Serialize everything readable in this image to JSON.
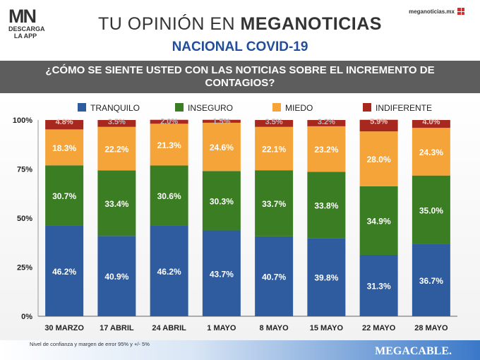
{
  "logo": {
    "text": "MN",
    "sub1": "DESCARGA",
    "sub2": "LA APP"
  },
  "site": "meganoticias.mx",
  "title_light": "TU OPINIÓN EN ",
  "title_bold": "MEGANOTICIAS",
  "subtitle": "NACIONAL COVID-19",
  "question_line1": "¿CÓMO SE SIENTE USTED CON LAS NOTICIAS SOBRE EL INCREMENTO DE",
  "question_line2": "CONTAGIOS?",
  "footnote": "Nivel de confianza y margen de error 95% y +/- 5%",
  "brand": "MEGACABLE.",
  "colors": {
    "tranquilo": "#2f5c9e",
    "inseguro": "#3b7d23",
    "miedo": "#f5a43a",
    "indiferente": "#a6281f"
  },
  "chart_data": {
    "type": "bar",
    "stacked": true,
    "categories": [
      "30 MARZO",
      "17 ABRIL",
      "24 ABRIL",
      "1 MAYO",
      "8 MAYO",
      "15 MAYO",
      "22 MAYO",
      "28 MAYO"
    ],
    "series": [
      {
        "name": "TRANQUILO",
        "values": [
          46.2,
          40.9,
          46.2,
          43.7,
          40.7,
          39.8,
          31.3,
          36.7
        ],
        "labels": [
          "46.2%",
          "40.9%",
          "46.2%",
          "43.7%",
          "40.7%",
          "39.8%",
          "31.3%",
          "36.7%"
        ]
      },
      {
        "name": "INSEGURO",
        "values": [
          30.7,
          33.4,
          30.6,
          30.3,
          33.7,
          33.8,
          34.9,
          35.0
        ],
        "labels": [
          "30.7%",
          "33.4%",
          "30.6%",
          "30.3%",
          "33.7%",
          "33.8%",
          "34.9%",
          "35.0%"
        ]
      },
      {
        "name": "MIEDO",
        "values": [
          18.3,
          22.2,
          21.3,
          24.6,
          22.1,
          23.2,
          28.0,
          24.3
        ],
        "labels": [
          "18.3%",
          "22.2%",
          "21.3%",
          "24.6%",
          "22.1%",
          "23.2%",
          "28.0%",
          "24.3%"
        ]
      },
      {
        "name": "INDIFERENTE",
        "values": [
          4.8,
          3.5,
          2.0,
          1.5,
          3.5,
          3.2,
          5.9,
          4.0
        ],
        "labels": [
          "4.8%",
          "3.5%",
          "2.0%",
          "1.5%",
          "3.5%",
          "3.2%",
          "5.9%",
          "4.0%"
        ]
      }
    ],
    "yticks": [
      "0%",
      "25%",
      "50%",
      "75%",
      "100%"
    ],
    "ylim": [
      0,
      100
    ],
    "legend_position": "top",
    "grid": false
  }
}
